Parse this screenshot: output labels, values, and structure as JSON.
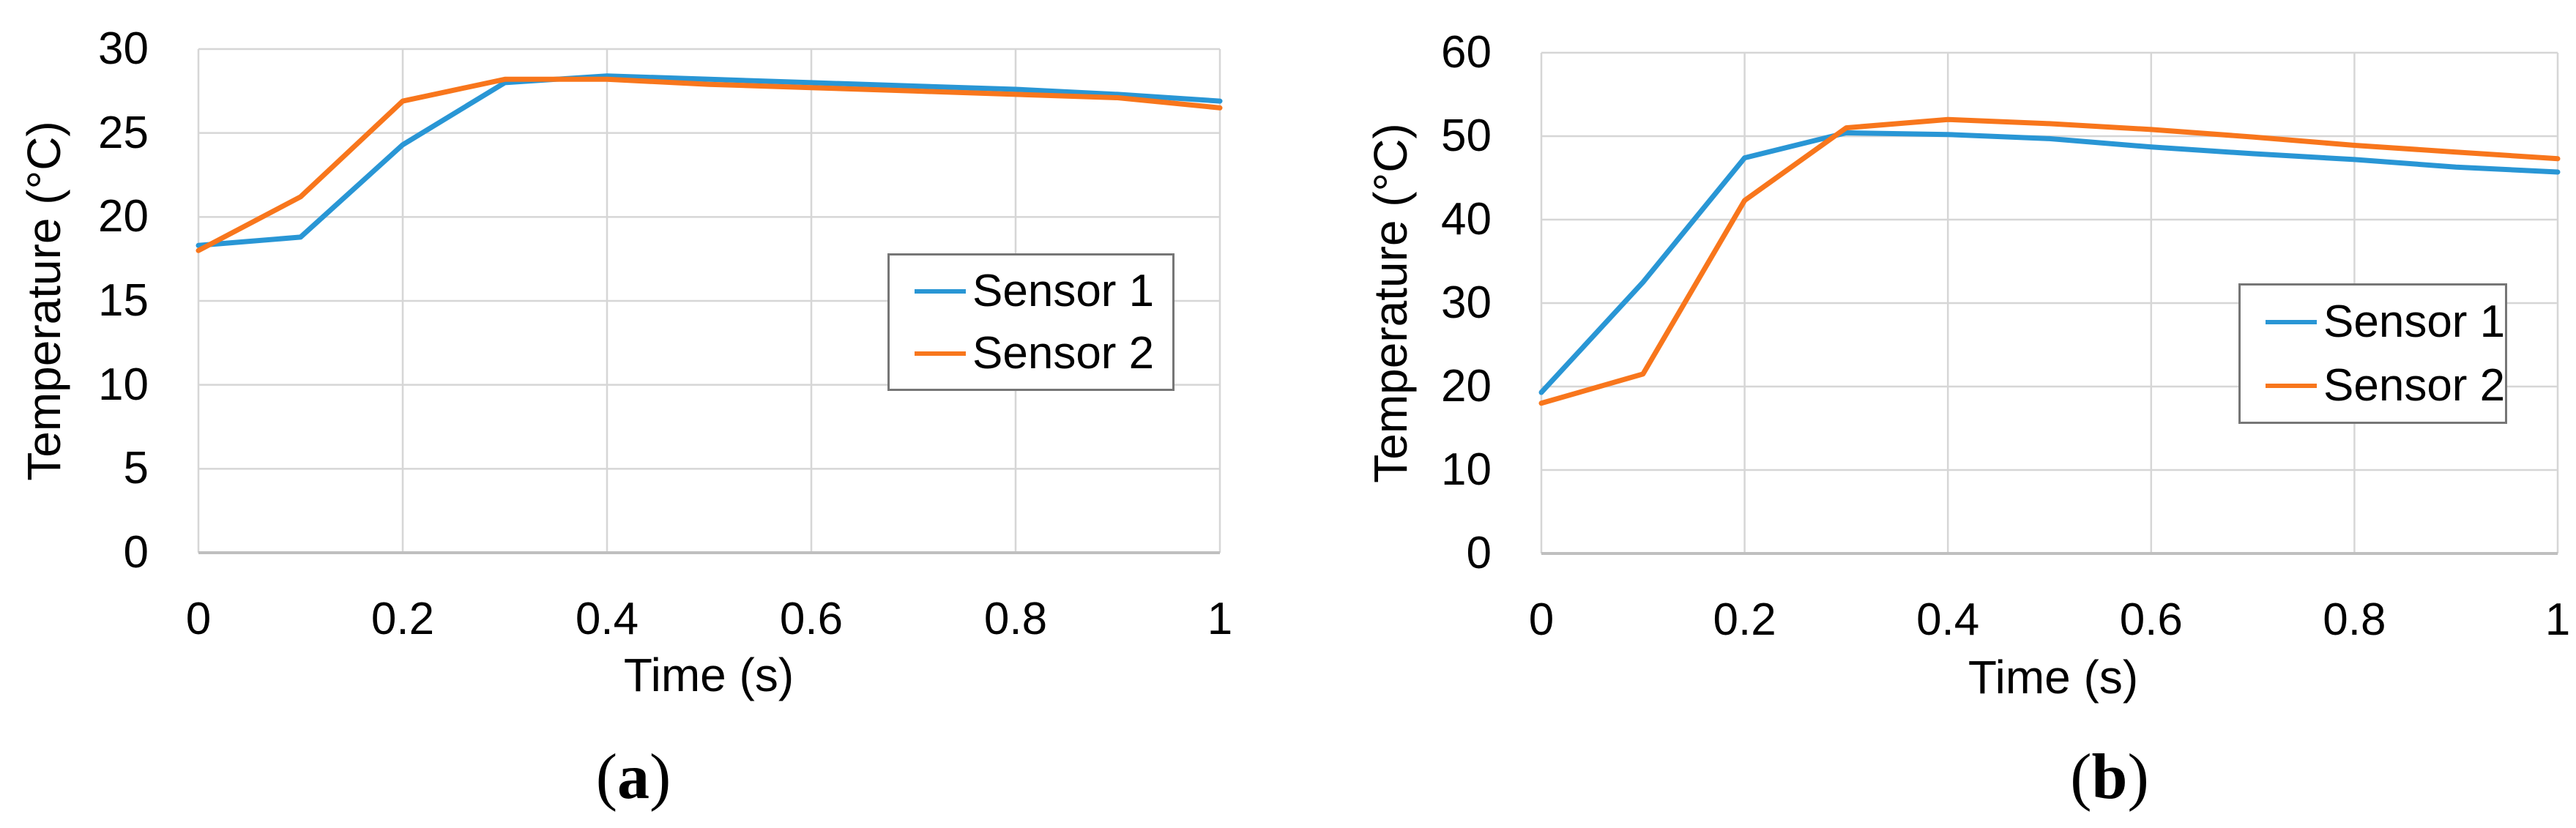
{
  "colors": {
    "sensor1": "#2996D5",
    "sensor2": "#F8761C",
    "grid": "#D6D6D6",
    "axis_line": "#BFBFBF",
    "legend_border": "#767676",
    "text": "#000000",
    "background": "#FFFFFF"
  },
  "chart_data": [
    {
      "type": "line",
      "panel": "a",
      "xlabel": "Time (s)",
      "ylabel": "Temperature (°C)",
      "xlim": [
        0,
        1
      ],
      "ylim": [
        0,
        30
      ],
      "xticks": [
        0,
        0.2,
        0.4,
        0.6,
        0.8,
        1
      ],
      "xtick_labels": [
        "0",
        "0.2",
        "0.4",
        "0.6",
        "0.8",
        "1"
      ],
      "yticks": [
        0,
        5,
        10,
        15,
        20,
        25,
        30
      ],
      "grid": true,
      "legend_position": "inside-right",
      "x": [
        0,
        0.1,
        0.2,
        0.3,
        0.4,
        0.5,
        0.6,
        0.7,
        0.8,
        0.9,
        1.0
      ],
      "series": [
        {
          "name": "Sensor 1",
          "color_key": "sensor1",
          "values": [
            18.3,
            18.8,
            24.3,
            28.0,
            28.4,
            28.2,
            28.0,
            27.8,
            27.6,
            27.3,
            26.9
          ]
        },
        {
          "name": "Sensor 2",
          "color_key": "sensor2",
          "values": [
            18.0,
            21.2,
            26.9,
            28.2,
            28.2,
            27.9,
            27.7,
            27.5,
            27.3,
            27.1,
            26.5
          ]
        }
      ]
    },
    {
      "type": "line",
      "panel": "b",
      "xlabel": "Time (s)",
      "ylabel": "Temperature (°C)",
      "xlim": [
        0,
        1
      ],
      "ylim": [
        0,
        60
      ],
      "xticks": [
        0,
        0.2,
        0.4,
        0.6,
        0.8,
        1
      ],
      "xtick_labels": [
        "0",
        "0.2",
        "0.4",
        "0.6",
        "0.8",
        "1"
      ],
      "yticks": [
        0,
        10,
        20,
        30,
        40,
        50,
        60
      ],
      "grid": true,
      "legend_position": "inside-right",
      "x": [
        0,
        0.1,
        0.2,
        0.3,
        0.4,
        0.5,
        0.6,
        0.7,
        0.8,
        0.9,
        1.0
      ],
      "series": [
        {
          "name": "Sensor 1",
          "color_key": "sensor1",
          "values": [
            19.3,
            32.5,
            47.4,
            50.4,
            50.2,
            49.7,
            48.7,
            47.9,
            47.2,
            46.3,
            45.7
          ]
        },
        {
          "name": "Sensor 2",
          "color_key": "sensor2",
          "values": [
            18.0,
            21.5,
            42.3,
            51.0,
            52.0,
            51.5,
            50.8,
            49.9,
            48.9,
            48.1,
            47.3
          ]
        }
      ]
    }
  ],
  "panel_labels": [
    {
      "open": "(",
      "letter": "a",
      "close": ")"
    },
    {
      "open": "(",
      "letter": "b",
      "close": ")"
    }
  ]
}
